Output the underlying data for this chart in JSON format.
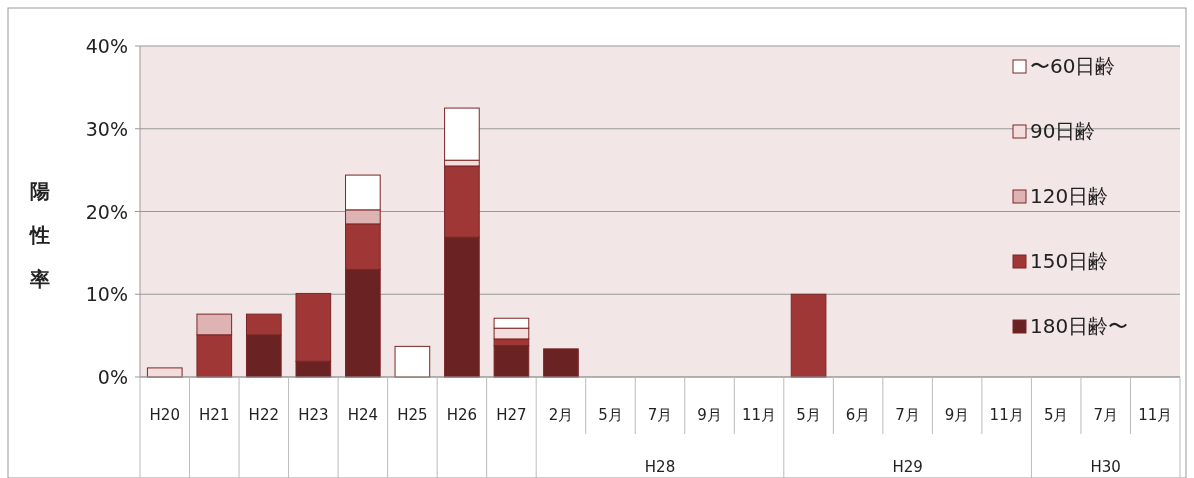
{
  "chart_data": {
    "type": "bar",
    "stacked": true,
    "ylabel": "陽性率",
    "categories": [
      "H20",
      "H21",
      "H22",
      "H23",
      "H24",
      "H25",
      "H26",
      "H27",
      "2月",
      "5月",
      "7月",
      "9月",
      "11月",
      "5月",
      "6月",
      "7月",
      "9月",
      "11月",
      "5月",
      "7月",
      "11月"
    ],
    "series": [
      {
        "name": "180日齢〜",
        "color": "#6b2222",
        "values": [
          0,
          0,
          5.1,
          1.9,
          13.0,
          0,
          16.9,
          3.8,
          3.4,
          0,
          0,
          0,
          0,
          0,
          0,
          0,
          0,
          0,
          0,
          0,
          0
        ]
      },
      {
        "name": "150日齢",
        "color": "#9e3736",
        "values": [
          0,
          5.1,
          2.5,
          8.2,
          5.5,
          0,
          8.6,
          0.8,
          0,
          0,
          0,
          0,
          0,
          10.0,
          0,
          0,
          0,
          0,
          0,
          0,
          0
        ]
      },
      {
        "name": "120日齢",
        "color": "#deb3b3",
        "values": [
          0,
          2.5,
          0,
          0,
          1.7,
          0,
          0,
          0,
          0,
          0,
          0,
          0,
          0,
          0,
          0,
          0,
          0,
          0,
          0,
          0,
          0
        ]
      },
      {
        "name": "90日齢",
        "color": "#f3dcdc",
        "values": [
          1.1,
          0,
          0,
          0,
          0,
          0,
          0.7,
          1.3,
          0,
          0,
          0,
          0,
          0,
          0,
          0,
          0,
          0,
          0,
          0,
          0,
          0
        ]
      },
      {
        "name": "〜60日齢",
        "color": "#ffffff",
        "values": [
          0,
          0,
          0,
          0,
          4.2,
          3.7,
          6.3,
          1.2,
          0,
          0,
          0,
          0,
          0,
          0,
          0,
          0,
          0,
          0,
          0,
          0,
          0
        ]
      }
    ],
    "ylim": [
      0,
      40
    ],
    "yticks": [
      {
        "value": 0,
        "label": "0%"
      },
      {
        "value": 10,
        "label": "10%"
      },
      {
        "value": 20,
        "label": "20%"
      },
      {
        "value": 30,
        "label": "30%"
      },
      {
        "value": 40,
        "label": "40%"
      }
    ],
    "grid": "y",
    "legend": "right",
    "annotations": [
      "H28",
      "H29",
      "H30"
    ]
  }
}
